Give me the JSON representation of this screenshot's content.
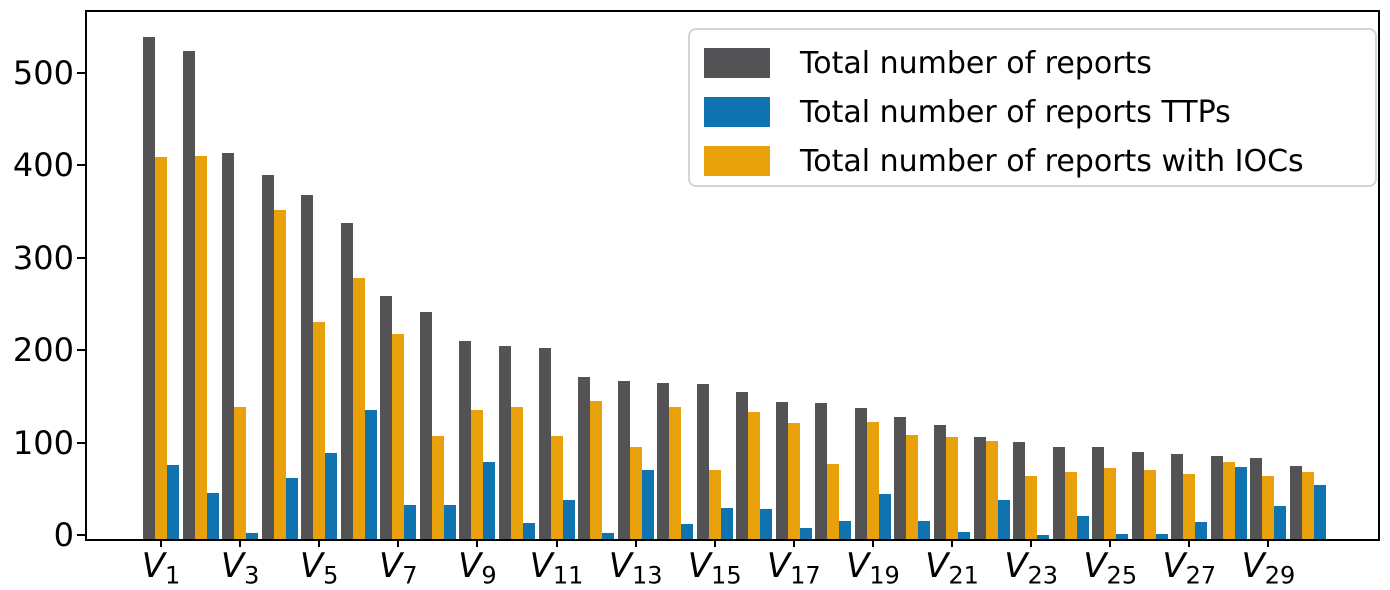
{
  "chart_data": {
    "type": "bar",
    "title": "",
    "xlabel": "",
    "ylabel": "",
    "grid": false,
    "legend_position": "upper right",
    "ylim": [
      0,
      570
    ],
    "y_ticks": [
      0,
      100,
      200,
      300,
      400,
      500
    ],
    "categories": [
      "V1",
      "V2",
      "V3",
      "V4",
      "V5",
      "V6",
      "V7",
      "V8",
      "V9",
      "V10",
      "V11",
      "V12",
      "V13",
      "V14",
      "V15",
      "V16",
      "V17",
      "V18",
      "V19",
      "V20",
      "V21",
      "V22",
      "V23",
      "V24",
      "V25",
      "V26",
      "V27",
      "V28",
      "V29",
      "V30"
    ],
    "x_ticks": [
      {
        "base": "V",
        "sub": "1"
      },
      {
        "base": "V",
        "sub": "3"
      },
      {
        "base": "V",
        "sub": "5"
      },
      {
        "base": "V",
        "sub": "7"
      },
      {
        "base": "V",
        "sub": "9"
      },
      {
        "base": "V",
        "sub": "11"
      },
      {
        "base": "V",
        "sub": "13"
      },
      {
        "base": "V",
        "sub": "15"
      },
      {
        "base": "V",
        "sub": "17"
      },
      {
        "base": "V",
        "sub": "19"
      },
      {
        "base": "V",
        "sub": "21"
      },
      {
        "base": "V",
        "sub": "23"
      },
      {
        "base": "V",
        "sub": "25"
      },
      {
        "base": "V",
        "sub": "27"
      },
      {
        "base": "V",
        "sub": "29"
      }
    ],
    "series": [
      {
        "name": "Total number of reports",
        "color": "#535355",
        "values": [
          543,
          528,
          418,
          394,
          372,
          342,
          263,
          245,
          214,
          209,
          207,
          175,
          171,
          169,
          168,
          159,
          148,
          147,
          142,
          132,
          123,
          110,
          105,
          100,
          99,
          94,
          92,
          90,
          88,
          79
        ]
      },
      {
        "name": "Total number of reports TTPs",
        "color": "#0e73ae",
        "values": [
          80,
          50,
          6,
          66,
          93,
          139,
          37,
          37,
          83,
          17,
          42,
          7,
          75,
          16,
          33,
          32,
          12,
          20,
          49,
          20,
          8,
          42,
          4,
          25,
          5,
          5,
          18,
          78,
          36,
          58
        ]
      },
      {
        "name": "Total number of reports with IOCs",
        "color": "#e9a10b",
        "values": [
          413,
          414,
          143,
          356,
          235,
          282,
          222,
          111,
          139,
          143,
          111,
          149,
          99,
          143,
          75,
          137,
          125,
          81,
          127,
          113,
          110,
          106,
          68,
          73,
          77,
          75,
          70,
          83,
          68,
          73
        ]
      }
    ]
  }
}
